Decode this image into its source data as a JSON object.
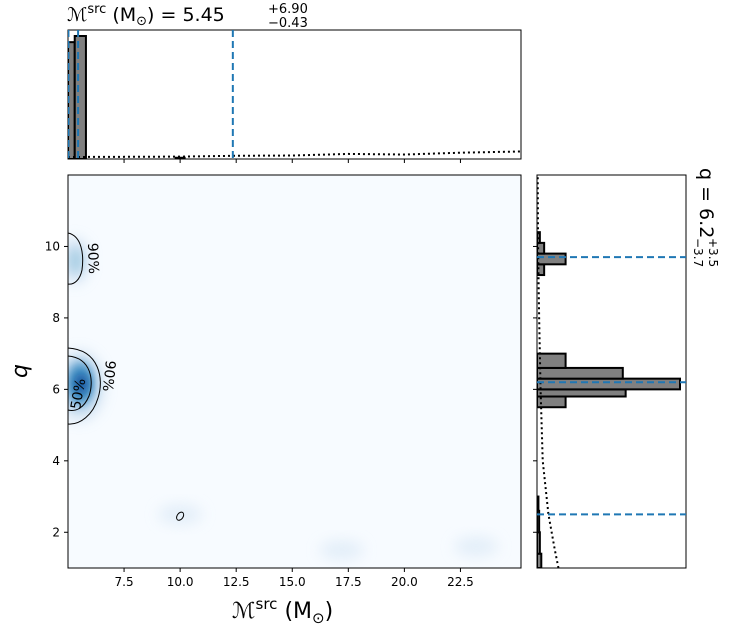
{
  "chart_data": {
    "type": "corner",
    "top_title": {
      "symbol": "ℳ",
      "sup": "src",
      "unit": "(M",
      "unit_sub": "⊙",
      "unit_close": ")",
      "eq": " = 5.45",
      "err_up": "+6.90",
      "err_down": "−0.43"
    },
    "right_title": {
      "text": "q = 6.2",
      "err_up": "+3.5",
      "err_down": "−3.7"
    },
    "xlabel": {
      "symbol": "ℳ",
      "sup": "src",
      "unit": "(M",
      "unit_sub": "⊙",
      "unit_close": ")"
    },
    "ylabel": "q",
    "xlim": [
      5.0,
      25.2
    ],
    "ylim": [
      1.0,
      12.0
    ],
    "x_ticks": [
      7.5,
      10.0,
      12.5,
      15.0,
      17.5,
      20.0,
      22.5
    ],
    "x_tick_labels": [
      "7.5",
      "10.0",
      "12.5",
      "15.0",
      "17.5",
      "20.0",
      "22.5"
    ],
    "y_ticks": [
      2,
      4,
      6,
      8,
      10
    ],
    "y_tick_labels": [
      "2",
      "4",
      "6",
      "8",
      "10"
    ],
    "mchirp_quantiles": [
      5.02,
      5.45,
      12.35
    ],
    "q_quantiles": [
      2.5,
      6.2,
      9.7
    ],
    "contour_labels": [
      "90%",
      "50%",
      "90%"
    ],
    "density_blobs": [
      {
        "x": 5.5,
        "y": 6.1,
        "weight": 1.0
      },
      {
        "x": 5.3,
        "y": 9.6,
        "weight": 0.35
      },
      {
        "x": 10.0,
        "y": 2.5,
        "weight": 0.08
      },
      {
        "x": 17.2,
        "y": 1.5,
        "weight": 0.04
      },
      {
        "x": 23.2,
        "y": 1.6,
        "weight": 0.04
      }
    ],
    "mchirp_hist": {
      "bins": [
        [
          5.0,
          5.3,
          0.95
        ],
        [
          5.3,
          5.8,
          1.0
        ],
        [
          9.8,
          10.2,
          0.01
        ]
      ],
      "prior": [
        [
          5.0,
          0.0
        ],
        [
          10.0,
          0.003
        ],
        [
          12.5,
          0.01
        ],
        [
          15.0,
          0.012
        ],
        [
          17.5,
          0.025
        ],
        [
          20.0,
          0.02
        ],
        [
          22.5,
          0.035
        ],
        [
          25.2,
          0.045
        ]
      ]
    },
    "q_hist": {
      "bins": [
        [
          1.0,
          1.4,
          0.03
        ],
        [
          1.4,
          2.0,
          0.02
        ],
        [
          2.0,
          2.6,
          0.015
        ],
        [
          2.6,
          3.0,
          0.01
        ],
        [
          5.5,
          5.8,
          0.2
        ],
        [
          5.8,
          6.0,
          0.62
        ],
        [
          6.0,
          6.3,
          1.0
        ],
        [
          6.3,
          6.6,
          0.6
        ],
        [
          6.6,
          7.0,
          0.2
        ],
        [
          9.2,
          9.5,
          0.05
        ],
        [
          9.5,
          9.8,
          0.2
        ],
        [
          9.8,
          10.1,
          0.05
        ],
        [
          10.1,
          10.4,
          0.02
        ]
      ],
      "prior": [
        [
          1.0,
          0.3
        ],
        [
          1.5,
          0.25
        ],
        [
          2.5,
          0.16
        ],
        [
          4.0,
          0.08
        ],
        [
          6.0,
          0.05
        ],
        [
          8.0,
          0.03
        ],
        [
          10.0,
          0.015
        ],
        [
          12.0,
          0.01
        ]
      ]
    }
  }
}
